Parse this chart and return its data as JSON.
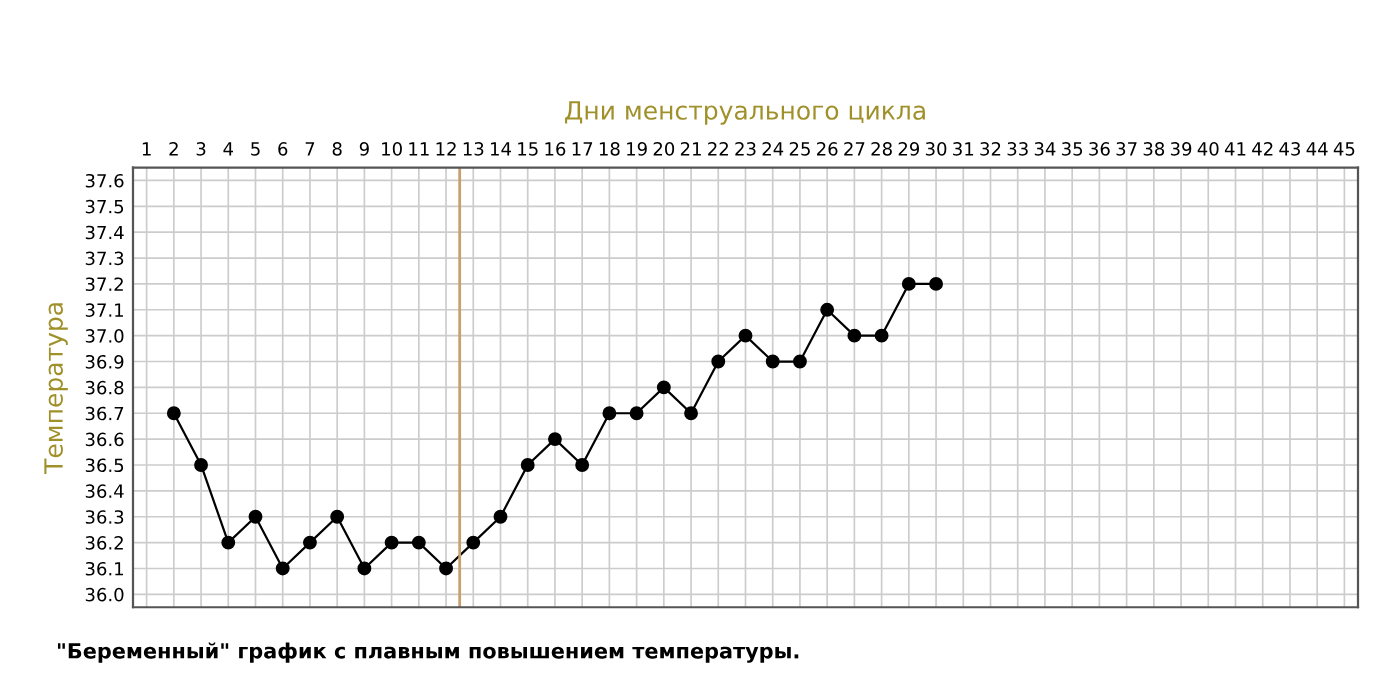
{
  "chart_data": {
    "type": "line",
    "xlabel": "Дни менструального цикла",
    "ylabel": "Температура",
    "x": [
      2,
      3,
      4,
      5,
      6,
      7,
      8,
      9,
      10,
      11,
      12,
      13,
      14,
      15,
      16,
      17,
      18,
      19,
      20,
      21,
      22,
      23,
      24,
      25,
      26,
      27,
      28,
      29,
      30
    ],
    "values": [
      36.7,
      36.5,
      36.2,
      36.3,
      36.1,
      36.2,
      36.3,
      36.1,
      36.2,
      36.2,
      36.1,
      36.2,
      36.3,
      36.5,
      36.6,
      36.5,
      36.7,
      36.7,
      36.8,
      36.7,
      36.9,
      37.0,
      36.9,
      36.9,
      37.1,
      37.0,
      37.0,
      37.2,
      37.2
    ],
    "color": "#000000",
    "marker": "circle",
    "line_style": "solid",
    "xlim": [
      0.5,
      45.5
    ],
    "xticks": [
      1,
      2,
      3,
      4,
      5,
      6,
      7,
      8,
      9,
      10,
      11,
      12,
      13,
      14,
      15,
      16,
      17,
      18,
      19,
      20,
      21,
      22,
      23,
      24,
      25,
      26,
      27,
      28,
      29,
      30,
      31,
      32,
      33,
      34,
      35,
      36,
      37,
      38,
      39,
      40,
      41,
      42,
      43,
      44,
      45
    ],
    "ylim": [
      35.95,
      37.65
    ],
    "yticks": [
      {
        "value": 36.0,
        "label": "36.0"
      },
      {
        "value": 36.1,
        "label": "36.1"
      },
      {
        "value": 36.2,
        "label": "36.2"
      },
      {
        "value": 36.3,
        "label": "36.3"
      },
      {
        "value": 36.4,
        "label": "36.4"
      },
      {
        "value": 36.5,
        "label": "36.5"
      },
      {
        "value": 36.6,
        "label": "36.6"
      },
      {
        "value": 36.7,
        "label": "36.7"
      },
      {
        "value": 36.8,
        "label": "36.8"
      },
      {
        "value": 36.9,
        "label": "36.9"
      },
      {
        "value": 37.0,
        "label": "37.0"
      },
      {
        "value": 37.1,
        "label": "37.1"
      },
      {
        "value": 37.2,
        "label": "37.2"
      },
      {
        "value": 37.3,
        "label": "37.3"
      },
      {
        "value": 37.4,
        "label": "37.4"
      },
      {
        "value": 37.5,
        "label": "37.5"
      },
      {
        "value": 37.6,
        "label": "37.6"
      }
    ],
    "grid": true,
    "ref_lines": [
      {
        "axis": "x",
        "value": 12.5,
        "color": "#c8a070"
      }
    ],
    "annotations": [
      "\"Беременный\" график с плавным повышением температуры."
    ]
  }
}
